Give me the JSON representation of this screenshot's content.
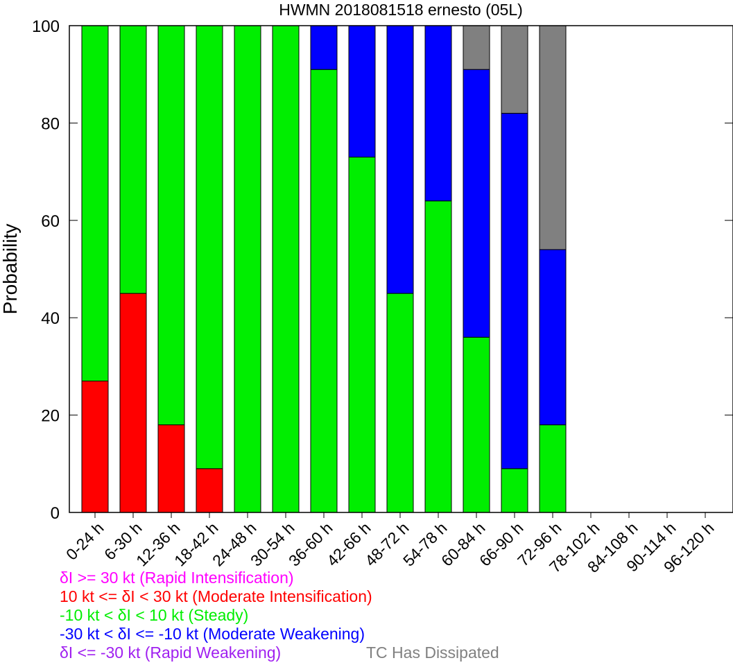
{
  "chart_data": {
    "type": "bar",
    "stacked": true,
    "title": "HWMN 2018081518 ernesto (05L)",
    "ylabel": "Probability",
    "xlabel": "",
    "ylim": [
      0,
      100
    ],
    "yticks": [
      0,
      20,
      40,
      60,
      80,
      100
    ],
    "grid": false,
    "categories": [
      "0-24 h",
      "6-30 h",
      "12-36 h",
      "18-42 h",
      "24-48 h",
      "30-54 h",
      "36-60 h",
      "42-66 h",
      "48-72 h",
      "54-78 h",
      "60-84 h",
      "66-90 h",
      "72-96 h",
      "78-102 h",
      "84-108 h",
      "90-114 h",
      "96-120 h"
    ],
    "series": [
      {
        "name": "δI >= 30 kt (Rapid Intensification)",
        "color": "#ff00ff",
        "values": [
          0,
          0,
          0,
          0,
          0,
          0,
          0,
          0,
          0,
          0,
          0,
          0,
          0,
          0,
          0,
          0,
          0
        ]
      },
      {
        "name": "10 kt <= δI < 30 kt (Moderate Intensification)",
        "color": "#ff0000",
        "values": [
          27,
          45,
          18,
          9,
          0,
          0,
          0,
          0,
          0,
          0,
          0,
          0,
          0,
          0,
          0,
          0,
          0
        ]
      },
      {
        "name": "-10 kt < δI < 10 kt (Steady)",
        "color": "#00ee00",
        "values": [
          73,
          55,
          82,
          91,
          100,
          100,
          91,
          73,
          45,
          64,
          36,
          9,
          18,
          0,
          0,
          0,
          0
        ]
      },
      {
        "name": "-30 kt < δI <= -10 kt (Moderate Weakening)",
        "color": "#0000ff",
        "values": [
          0,
          0,
          0,
          0,
          0,
          0,
          9,
          27,
          55,
          36,
          55,
          73,
          36,
          0,
          0,
          0,
          0
        ]
      },
      {
        "name": "δI <= -30 kt (Rapid Weakening)",
        "color": "#a020f0",
        "values": [
          0,
          0,
          0,
          0,
          0,
          0,
          0,
          0,
          0,
          0,
          0,
          0,
          0,
          0,
          0,
          0,
          0
        ]
      },
      {
        "name": "TC Has Dissipated",
        "color": "#808080",
        "values": [
          0,
          0,
          0,
          0,
          0,
          0,
          0,
          0,
          0,
          0,
          9,
          18,
          46,
          0,
          0,
          0,
          0
        ]
      }
    ]
  },
  "legend": {
    "ri": "δI >= 30 kt (Rapid Intensification)",
    "mi": "10 kt <= δI < 30 kt (Moderate Intensification)",
    "steady": "-10 kt < δI < 10 kt (Steady)",
    "mw": "-30 kt < δI <= -10 kt (Moderate Weakening)",
    "rw": "δI <= -30 kt (Rapid Weakening)",
    "dissipated": "TC Has Dissipated"
  }
}
